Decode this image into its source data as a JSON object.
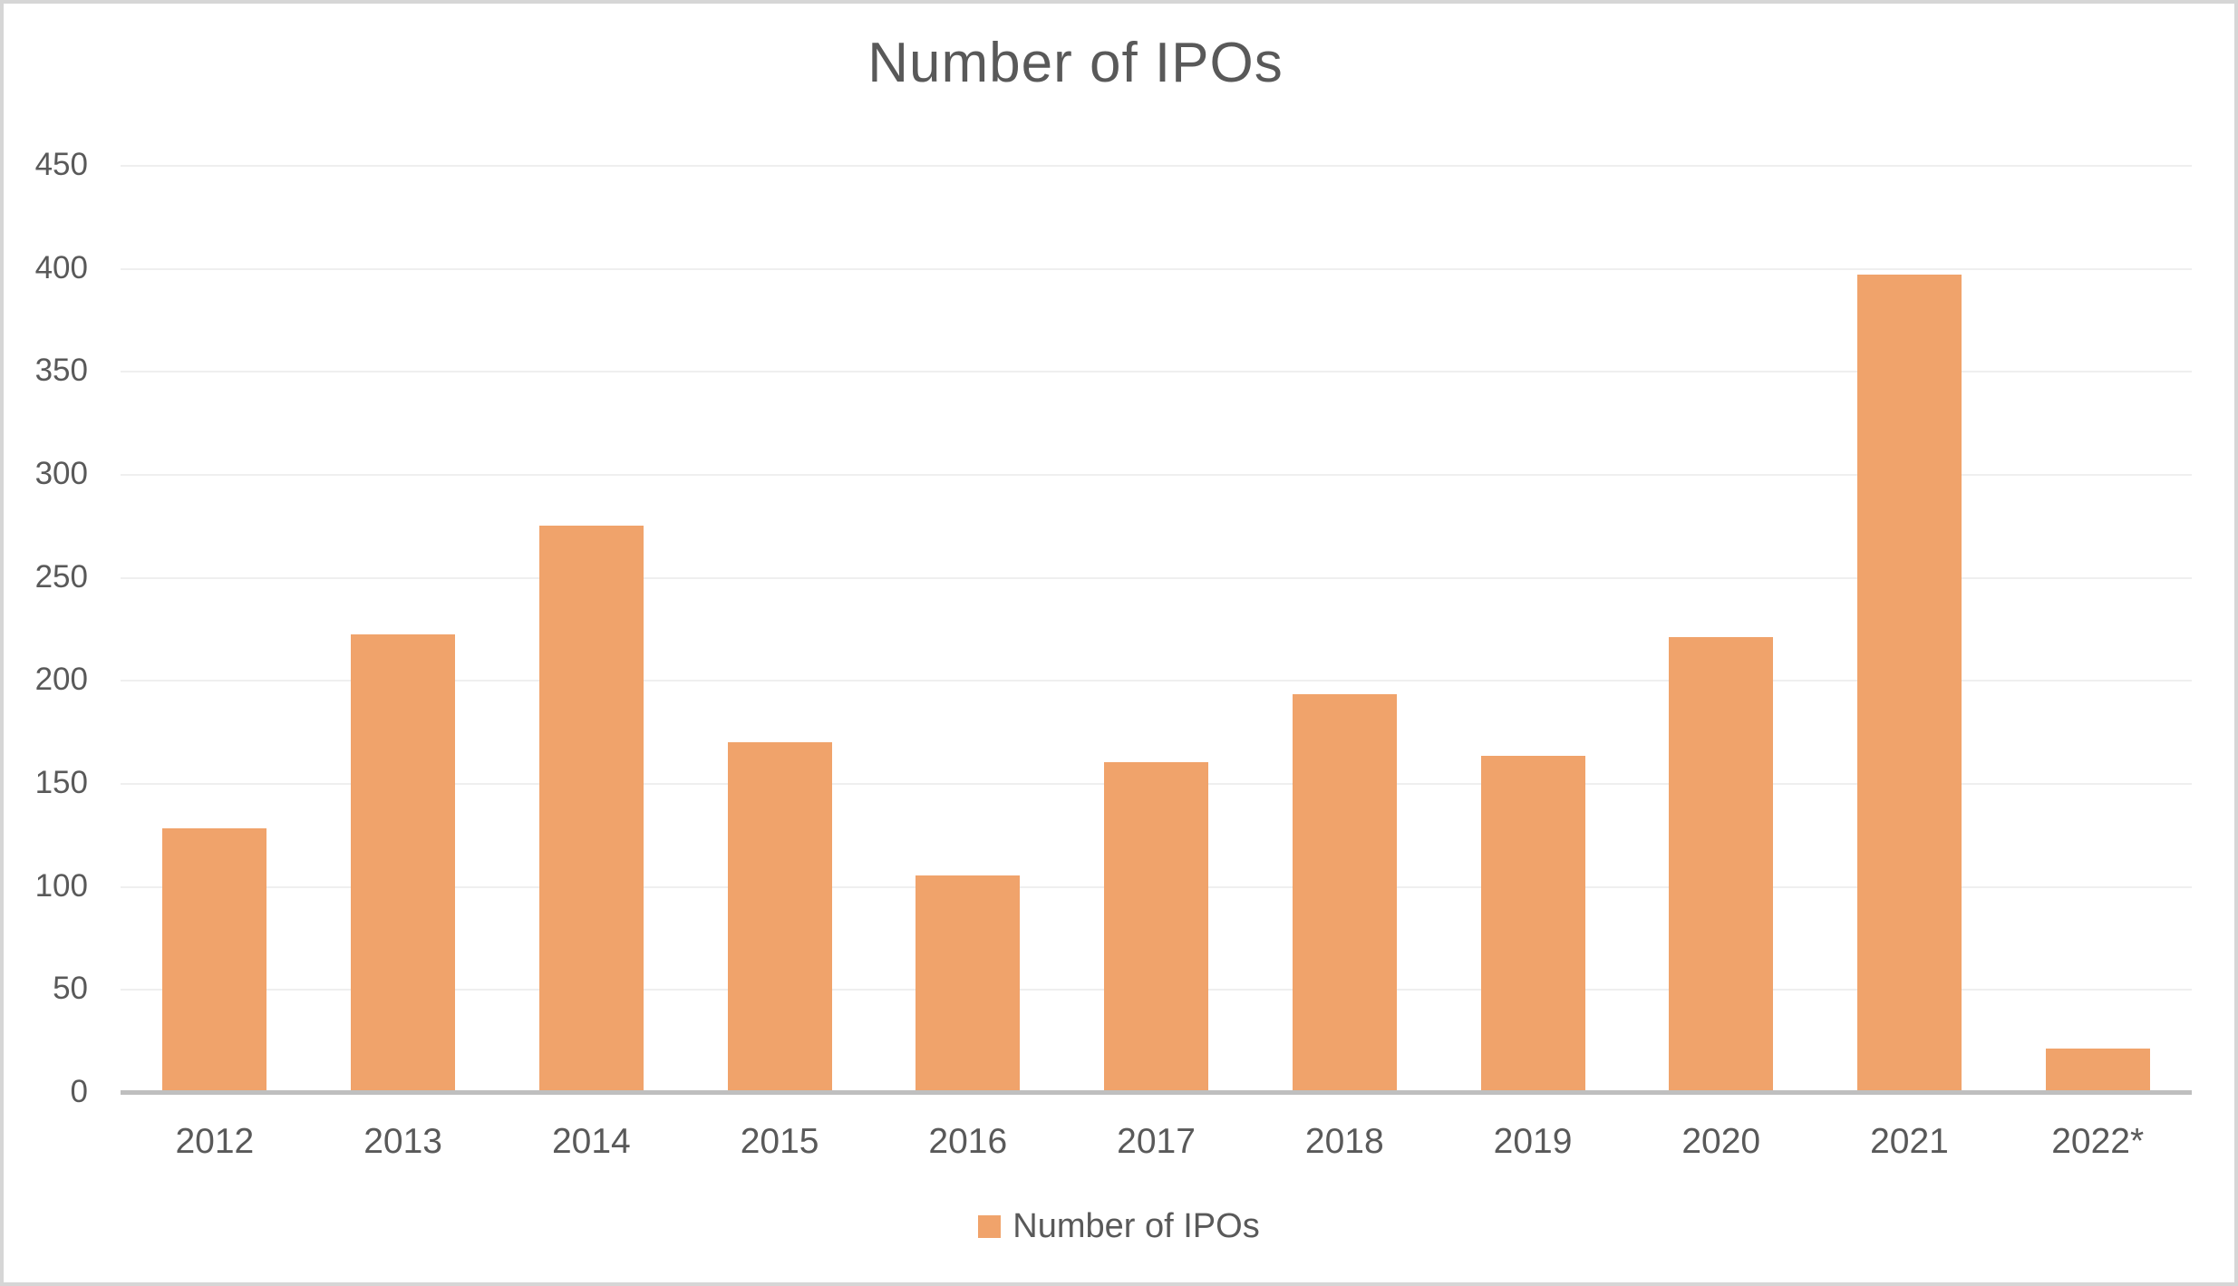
{
  "title": "Number of IPOs",
  "legend": {
    "label": "Number of IPOs"
  },
  "colors": {
    "bar": "#F0A36B",
    "gridline": "#EFEFEF",
    "axis_line": "#BFBFBF",
    "text": "#595959",
    "frame_border": "#D6D6D6",
    "background": "#FFFFFF"
  },
  "chart_data": {
    "type": "bar",
    "title": "Number of IPOs",
    "categories": [
      "2012",
      "2013",
      "2014",
      "2015",
      "2016",
      "2017",
      "2018",
      "2019",
      "2020",
      "2021",
      "2022*"
    ],
    "values": [
      128,
      222,
      275,
      170,
      105,
      160,
      193,
      163,
      221,
      397,
      21
    ],
    "series_name": "Number of IPOs",
    "xlabel": "",
    "ylabel": "",
    "ylim": [
      0,
      450
    ],
    "yticks": [
      0,
      50,
      100,
      150,
      200,
      250,
      300,
      350,
      400,
      450
    ],
    "grid": true,
    "legend_position": "bottom",
    "bar_color": "#F0A36B"
  }
}
